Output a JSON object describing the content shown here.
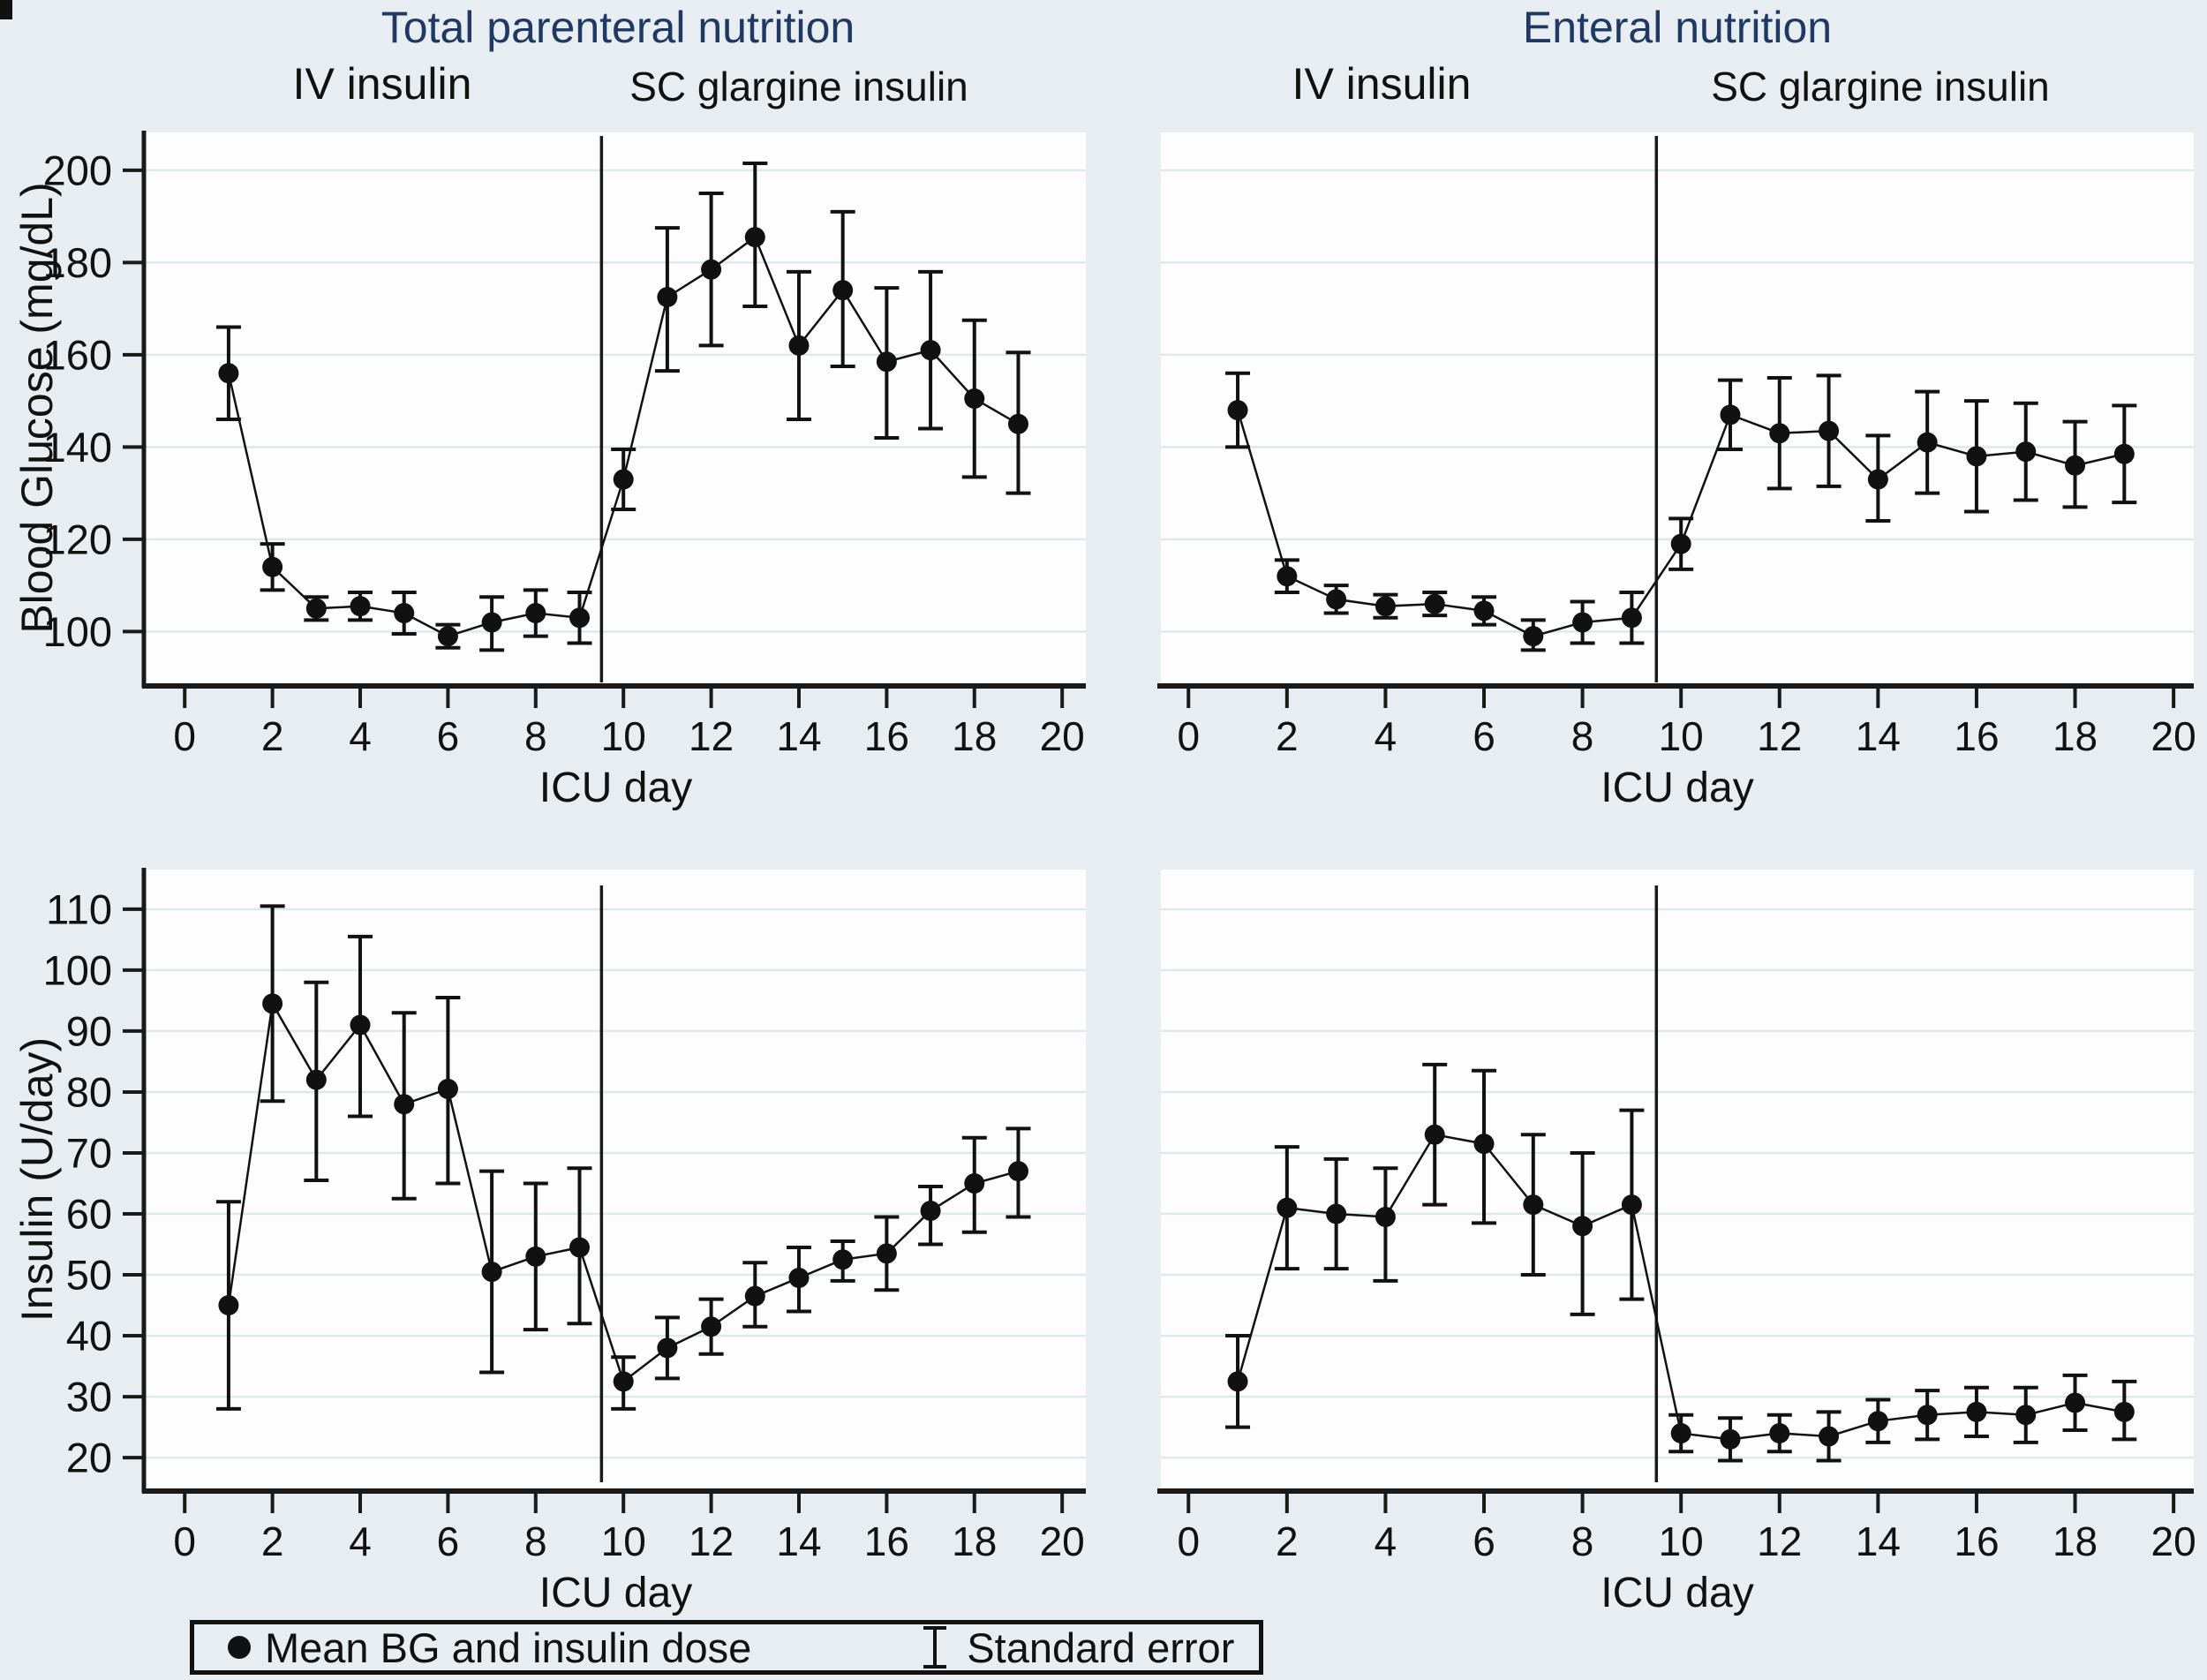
{
  "figure": {
    "background_color": "#e7edf0",
    "title_color": "#1f3864",
    "column_titles": {
      "left": "Total parenteral nutrition",
      "right": "Enteral nutrition"
    },
    "row_ylabels": {
      "top": "Blood Glucose (mg/dL)",
      "bottom": "Insulin (U/day)"
    },
    "xlabel": "ICU day",
    "legend": {
      "marker_label": "Mean BG and insulin dose",
      "error_label": "Standard error"
    }
  },
  "chart_data": [
    {
      "id": "tpn-blood-glucose",
      "type": "line",
      "column_title": "Total parenteral nutrition",
      "phase_labels": [
        "IV insulin",
        "SC glargine insulin"
      ],
      "xlabel": "ICU day",
      "ylabel": "Blood Glucose (mg/dL)",
      "xlim": [
        -0.89,
        20.54
      ],
      "ylim": [
        88.6,
        208.2
      ],
      "x_ticks": [
        0,
        2,
        4,
        6,
        8,
        10,
        12,
        14,
        16,
        18,
        20
      ],
      "y_ticks": [
        100,
        120,
        140,
        160,
        180,
        200
      ],
      "divider_x": 9.5,
      "grid": true,
      "legend_position": "none",
      "days": [
        1,
        2,
        3,
        4,
        5,
        6,
        7,
        8,
        9,
        10,
        11,
        12,
        13,
        14,
        15,
        16,
        17,
        18,
        19
      ],
      "mean": [
        156,
        114,
        105,
        105.5,
        104,
        99,
        102,
        104,
        103,
        133,
        172.5,
        178.5,
        185.5,
        162,
        174,
        158.5,
        161,
        150.5,
        145
      ],
      "se_low": [
        146,
        109,
        102.5,
        102.5,
        99.5,
        96.5,
        96,
        99,
        97.5,
        126.5,
        156.5,
        162,
        170.5,
        146,
        157.5,
        142,
        144,
        133.5,
        130
      ],
      "se_high": [
        166,
        119,
        107.5,
        108.5,
        108.5,
        101.5,
        107.5,
        109,
        108.5,
        139.5,
        187.5,
        195,
        201.5,
        178,
        191,
        174.5,
        178,
        167.5,
        160.5
      ]
    },
    {
      "id": "enteral-blood-glucose",
      "type": "line",
      "column_title": "Enteral nutrition",
      "phase_labels": [
        "IV insulin",
        "SC glargine insulin"
      ],
      "xlabel": "ICU day",
      "ylabel": "",
      "xlim": [
        -0.56,
        20.41
      ],
      "ylim": [
        88.6,
        208.2
      ],
      "x_ticks": [
        0,
        2,
        4,
        6,
        8,
        10,
        12,
        14,
        16,
        18,
        20
      ],
      "y_ticks": [
        100,
        120,
        140,
        160,
        180,
        200
      ],
      "divider_x": 9.5,
      "grid": true,
      "legend_position": "none",
      "days": [
        1,
        2,
        3,
        4,
        5,
        6,
        7,
        8,
        9,
        10,
        11,
        12,
        13,
        14,
        15,
        16,
        17,
        18,
        19
      ],
      "mean": [
        148,
        112,
        107,
        105.5,
        106,
        104.5,
        99,
        102,
        103,
        119,
        147,
        143,
        143.5,
        133,
        141,
        138,
        139,
        136,
        138.5
      ],
      "se_low": [
        140,
        108.5,
        104,
        103,
        103.5,
        101.5,
        96,
        97.5,
        97.5,
        113.5,
        139.5,
        131,
        131.5,
        124,
        130,
        126,
        128.5,
        127,
        128
      ],
      "se_high": [
        156,
        115.5,
        110,
        108,
        108.5,
        107.5,
        102.5,
        106.5,
        108.5,
        124.5,
        154.5,
        155,
        155.5,
        142.5,
        152,
        150,
        149.5,
        145.5,
        149
      ]
    },
    {
      "id": "tpn-insulin",
      "type": "line",
      "column_title": "Total parenteral nutrition",
      "phase_labels": [],
      "xlabel": "ICU day",
      "ylabel": "Insulin (U/day)",
      "xlim": [
        -0.89,
        20.54
      ],
      "ylim": [
        14.8,
        116.5
      ],
      "x_ticks": [
        0,
        2,
        4,
        6,
        8,
        10,
        12,
        14,
        16,
        18,
        20
      ],
      "y_ticks": [
        20,
        30,
        40,
        50,
        60,
        70,
        80,
        90,
        100,
        110
      ],
      "divider_x": 9.5,
      "grid": true,
      "legend_position": "none",
      "days": [
        1,
        2,
        3,
        4,
        5,
        6,
        7,
        8,
        9,
        10,
        11,
        12,
        13,
        14,
        15,
        16,
        17,
        18,
        19
      ],
      "mean": [
        45,
        94.5,
        82,
        91,
        78,
        80.5,
        50.5,
        53,
        54.5,
        32.5,
        38,
        41.5,
        46.5,
        49.5,
        52.5,
        53.5,
        60.5,
        65,
        67
      ],
      "se_low": [
        28,
        78.5,
        65.5,
        76,
        62.5,
        65,
        34,
        41,
        42,
        28,
        33,
        37,
        41.5,
        44,
        49,
        47.5,
        55,
        57,
        59.5
      ],
      "se_high": [
        62,
        110.5,
        98,
        105.5,
        93,
        95.5,
        67,
        65,
        67.5,
        36.5,
        43,
        46,
        52,
        54.5,
        55.5,
        59.5,
        64.5,
        72.5,
        74
      ]
    },
    {
      "id": "enteral-insulin",
      "type": "line",
      "column_title": "Enteral nutrition",
      "phase_labels": [],
      "xlabel": "ICU day",
      "ylabel": "",
      "xlim": [
        -0.56,
        20.41
      ],
      "ylim": [
        14.8,
        116.5
      ],
      "x_ticks": [
        0,
        2,
        4,
        6,
        8,
        10,
        12,
        14,
        16,
        18,
        20
      ],
      "y_ticks": [
        20,
        30,
        40,
        50,
        60,
        70,
        80,
        90,
        100,
        110
      ],
      "divider_x": 9.5,
      "grid": true,
      "legend_position": "none",
      "days": [
        1,
        2,
        3,
        4,
        5,
        6,
        7,
        8,
        9,
        10,
        11,
        12,
        13,
        14,
        15,
        16,
        17,
        18,
        19
      ],
      "mean": [
        32.5,
        61,
        60,
        59.5,
        73,
        71.5,
        61.5,
        58,
        61.5,
        24,
        23,
        24,
        23.5,
        26,
        27,
        27.5,
        27,
        29,
        27.5
      ],
      "se_low": [
        25,
        51,
        51,
        49,
        61.5,
        58.5,
        50,
        43.5,
        46,
        21,
        19.5,
        21,
        19.5,
        22.5,
        23,
        23.5,
        22.5,
        24.5,
        23
      ],
      "se_high": [
        40,
        71,
        69,
        67.5,
        84.5,
        83.5,
        73,
        70,
        77,
        27,
        26.5,
        27,
        27.5,
        29.5,
        31,
        31.5,
        31.5,
        33.5,
        32.5
      ]
    }
  ]
}
